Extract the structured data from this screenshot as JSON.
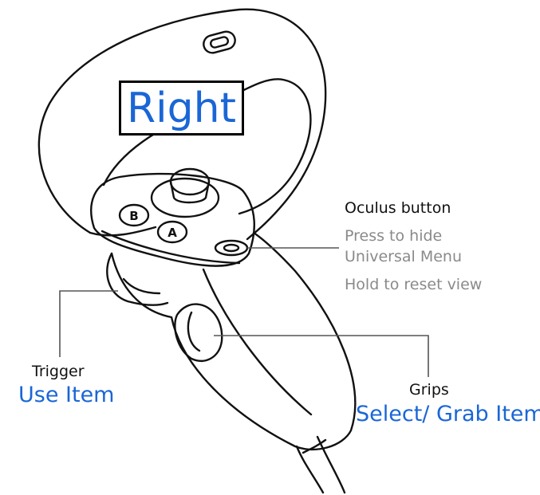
{
  "title": "Right",
  "oculus": {
    "heading": "Oculus button",
    "line1": "Press to hide",
    "line2": "Universal Menu",
    "line3": "Hold to reset view"
  },
  "trigger": {
    "heading": "Trigger",
    "action": "Use Item"
  },
  "grips": {
    "heading": "Grips",
    "action": "Select/ Grab Item"
  },
  "buttons": {
    "b": "B",
    "a": "A"
  },
  "colors": {
    "accent": "#1a66d6",
    "muted": "#8a8a8a",
    "ink": "#111111"
  },
  "icons": [
    "controller-illustration",
    "thumbstick-icon",
    "oculus-button-icon"
  ]
}
